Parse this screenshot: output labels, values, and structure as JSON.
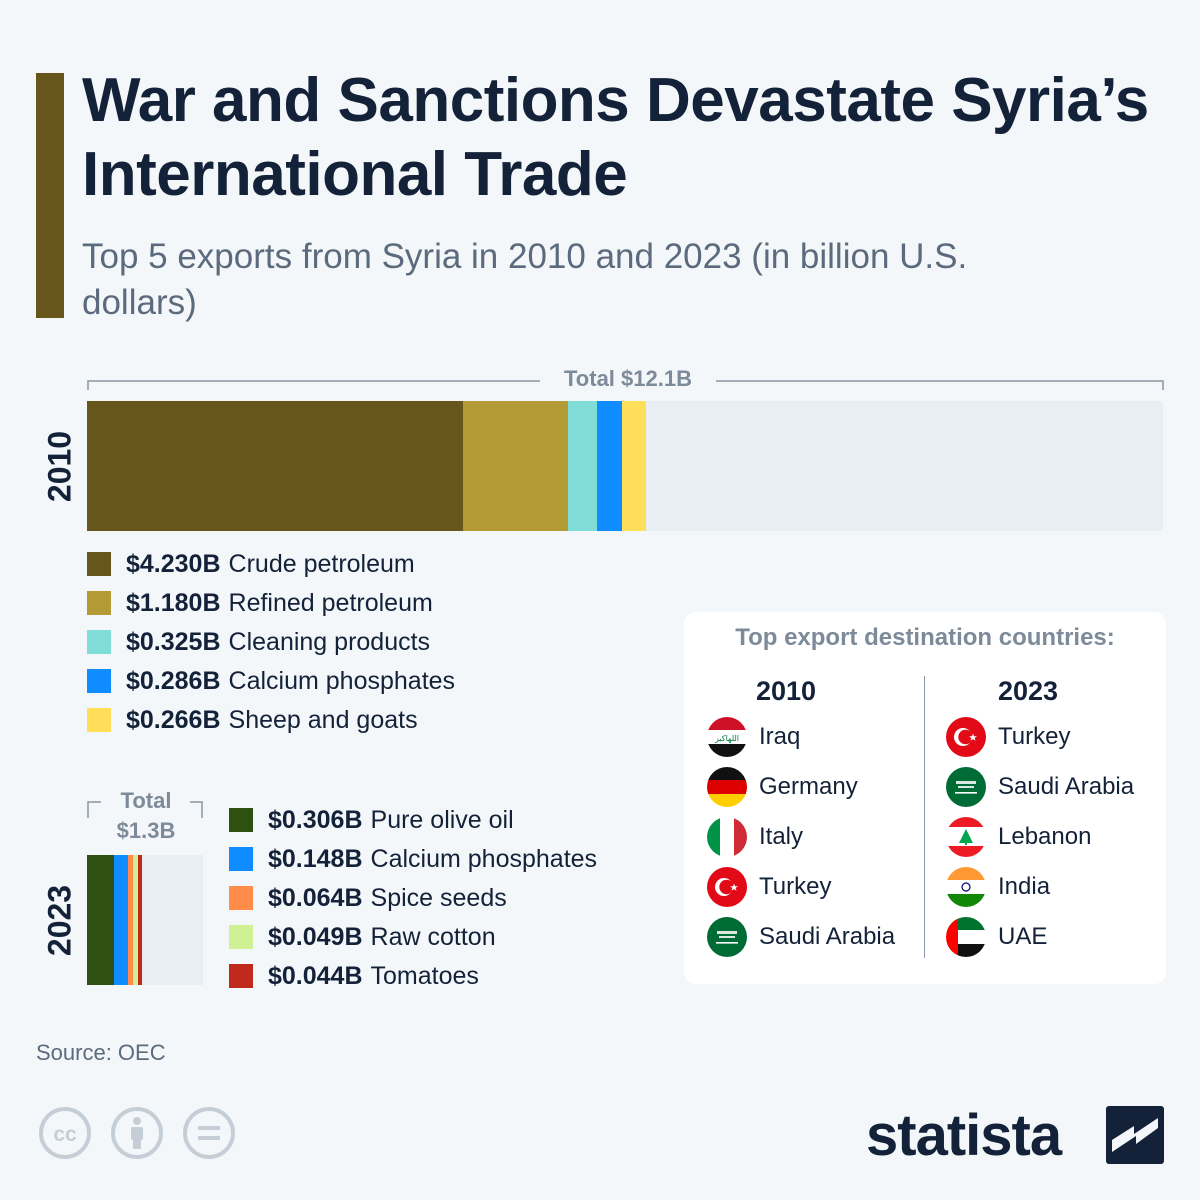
{
  "header": {
    "title": "War and Sanctions Devastate Syria’s International Trade",
    "subtitle": "Top 5 exports from Syria in 2010 and 2023 (in billion U.S. dollars)"
  },
  "colors": {
    "accent": "#66561c",
    "crude_petroleum": "#66561c",
    "refined_petroleum": "#b39a35",
    "cleaning_products": "#7fdcd6",
    "calcium_phosphates": "#0f8cff",
    "sheep_and_goats": "#ffde5a",
    "pure_olive_oil": "#2e5010",
    "spice_seeds": "#ff8c48",
    "raw_cotton": "#d0f094",
    "tomatoes": "#bf2a1c",
    "remainder": "#e8eff2"
  },
  "chart_data": [
    {
      "type": "bar",
      "layout": "stacked-horizontal",
      "year_label": "2010",
      "total_label": "Total $12.1B",
      "total": 12.1,
      "xlim": [
        0,
        12.1
      ],
      "series": [
        {
          "name": "Crude petroleum",
          "value": 4.23,
          "label": "$4.230B",
          "color": "#66561c"
        },
        {
          "name": "Refined petroleum",
          "value": 1.18,
          "label": "$1.180B",
          "color": "#b39a35"
        },
        {
          "name": "Cleaning products",
          "value": 0.325,
          "label": "$0.325B",
          "color": "#7fdcd6"
        },
        {
          "name": "Calcium phosphates",
          "value": 0.286,
          "label": "$0.286B",
          "color": "#0f8cff"
        },
        {
          "name": "Sheep and goats",
          "value": 0.266,
          "label": "$0.266B",
          "color": "#ffde5a"
        }
      ],
      "legend_placement": "below"
    },
    {
      "type": "bar",
      "layout": "stacked-horizontal",
      "year_label": "2023",
      "total_label_line1": "Total",
      "total_label_line2": "$1.3B",
      "total": 1.3,
      "xlim": [
        0,
        1.3
      ],
      "series": [
        {
          "name": "Pure olive oil",
          "value": 0.306,
          "label": "$0.306B",
          "color": "#2e5010"
        },
        {
          "name": "Calcium phosphates",
          "value": 0.148,
          "label": "$0.148B",
          "color": "#0f8cff"
        },
        {
          "name": "Spice seeds",
          "value": 0.064,
          "label": "$0.064B",
          "color": "#ff8c48"
        },
        {
          "name": "Raw cotton",
          "value": 0.049,
          "label": "$0.049B",
          "color": "#d0f094"
        },
        {
          "name": "Tomatoes",
          "value": 0.044,
          "label": "$0.044B",
          "color": "#bf2a1c"
        }
      ],
      "legend_placement": "right"
    }
  ],
  "destinations": {
    "title": "Top export destination countries:",
    "columns": [
      {
        "year": "2010",
        "countries": [
          {
            "name": "Iraq",
            "flag": "iraq-flag"
          },
          {
            "name": "Germany",
            "flag": "germany-flag"
          },
          {
            "name": "Italy",
            "flag": "italy-flag"
          },
          {
            "name": "Turkey",
            "flag": "turkey-flag"
          },
          {
            "name": "Saudi Arabia",
            "flag": "saudi-arabia-flag"
          }
        ]
      },
      {
        "year": "2023",
        "countries": [
          {
            "name": "Turkey",
            "flag": "turkey-flag"
          },
          {
            "name": "Saudi Arabia",
            "flag": "saudi-arabia-flag"
          },
          {
            "name": "Lebanon",
            "flag": "lebanon-flag"
          },
          {
            "name": "India",
            "flag": "india-flag"
          },
          {
            "name": "UAE",
            "flag": "uae-flag"
          }
        ]
      }
    ]
  },
  "footer": {
    "source": "Source: OEC",
    "brand": "statista",
    "icons": [
      "creative-commons-icon",
      "attribution-icon",
      "no-derivatives-icon"
    ]
  }
}
